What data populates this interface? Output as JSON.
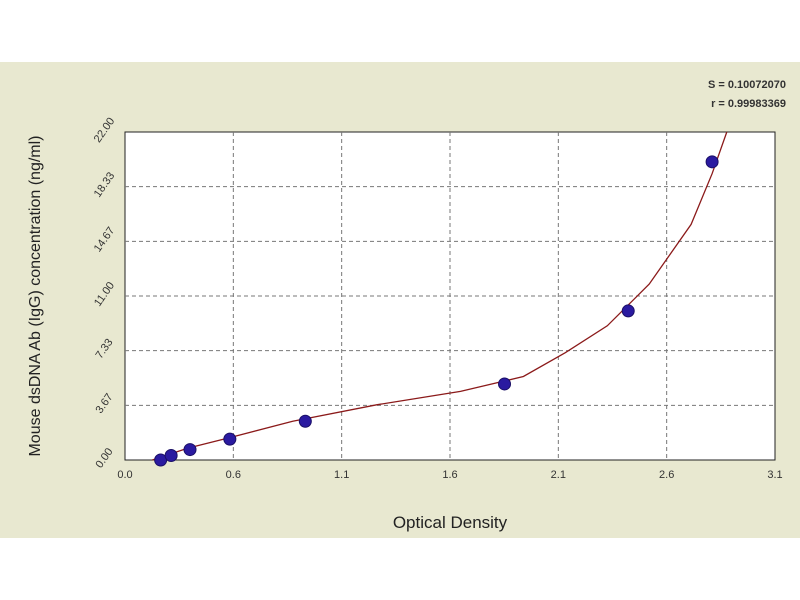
{
  "chart_data": {
    "type": "scatter",
    "title": "",
    "xlabel": "Optical Density",
    "ylabel": "Mouse dsDNA Ab (IgG) concentration (ng/ml)",
    "xlim": [
      0.0,
      3.1
    ],
    "ylim": [
      0.0,
      22.0
    ],
    "x_ticks": [
      "0.0",
      "0.6",
      "1.1",
      "1.6",
      "2.1",
      "2.6",
      "3.1"
    ],
    "y_ticks": [
      "0.00",
      "3.67",
      "7.33",
      "11.00",
      "14.67",
      "18.33",
      "22.00"
    ],
    "grid": true,
    "stats": [
      "S = 0.10072070",
      "r = 0.99983369"
    ],
    "series": [
      {
        "marker_color": "#2a1aa0",
        "points": [
          {
            "x": 0.17,
            "y": 0.0
          },
          {
            "x": 0.22,
            "y": 0.3
          },
          {
            "x": 0.31,
            "y": 0.7
          },
          {
            "x": 0.5,
            "y": 1.4
          },
          {
            "x": 0.86,
            "y": 2.6
          },
          {
            "x": 1.81,
            "y": 5.1
          },
          {
            "x": 2.4,
            "y": 10.0
          },
          {
            "x": 2.8,
            "y": 20.0
          }
        ]
      }
    ],
    "fit_curve": {
      "color": "#8b1a1a",
      "points": [
        {
          "x": 0.13,
          "y": 0.0
        },
        {
          "x": 0.3,
          "y": 0.8
        },
        {
          "x": 0.5,
          "y": 1.5
        },
        {
          "x": 0.8,
          "y": 2.6
        },
        {
          "x": 1.2,
          "y": 3.7
        },
        {
          "x": 1.6,
          "y": 4.6
        },
        {
          "x": 1.9,
          "y": 5.6
        },
        {
          "x": 2.1,
          "y": 7.2
        },
        {
          "x": 2.3,
          "y": 9.0
        },
        {
          "x": 2.5,
          "y": 11.8
        },
        {
          "x": 2.7,
          "y": 15.8
        },
        {
          "x": 2.8,
          "y": 19.2
        },
        {
          "x": 2.87,
          "y": 22.0
        }
      ]
    }
  }
}
